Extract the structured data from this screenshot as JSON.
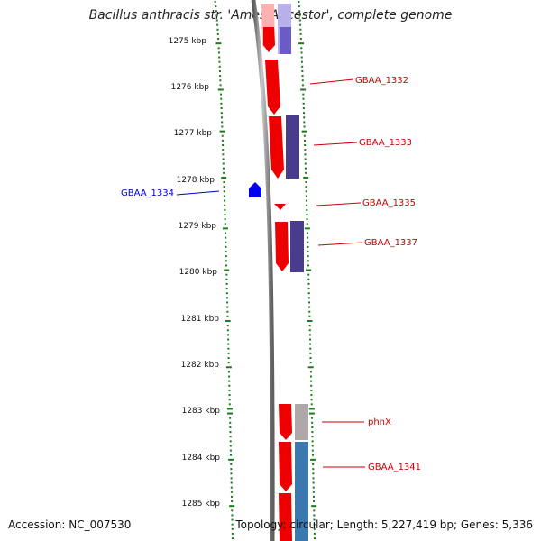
{
  "title": "Bacillus anthracis str. 'Ames Ancestor', complete genome",
  "accession": "Accession: NC_007530",
  "summary": "Topology: circular; Length: 5,227,419 bp; Genes: 5,336",
  "ticks": [
    "1275 kbp",
    "1276 kbp",
    "1277 kbp",
    "1278 kbp",
    "1279 kbp",
    "1280 kbp",
    "1281 kbp",
    "1282 kbp",
    "1283 kbp",
    "1284 kbp",
    "1285 kbp"
  ],
  "gene_labels": [
    {
      "text": "GBAA_1332",
      "color": "#cc0000"
    },
    {
      "text": "GBAA_1333",
      "color": "#cc0000"
    },
    {
      "text": "GBAA_1334",
      "color": "#0000cc"
    },
    {
      "text": "GBAA_1335",
      "color": "#cc0000"
    },
    {
      "text": "GBAA_1337",
      "color": "#cc0000"
    },
    {
      "text": "phnX",
      "color": "#cc0000"
    },
    {
      "text": "GBAA_1341",
      "color": "#cc0000"
    }
  ],
  "colors": {
    "forward_gene": "#ee0000",
    "reverse_gene": "#0000ee",
    "cds": "#4a3c8c",
    "cds_light": "#7b70c8",
    "trna_other": "#b0a8a8",
    "cds_blue": "#3a78b0",
    "tick": "#1a7a1a",
    "backbone": "#808080"
  }
}
